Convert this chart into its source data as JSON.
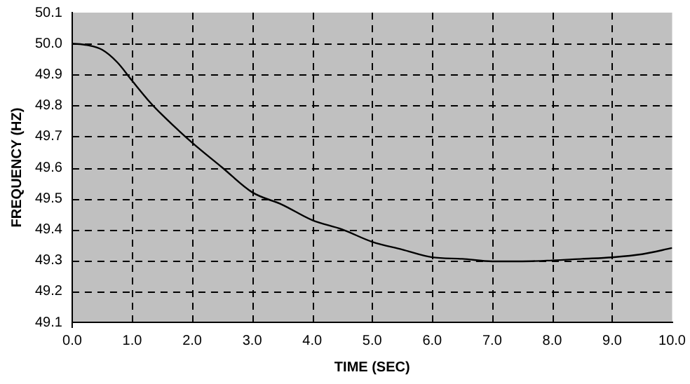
{
  "chart_data": {
    "type": "line",
    "xlabel": "TIME (SEC)",
    "ylabel": "FREQUENCY (HZ)",
    "x": [
      0,
      0.25,
      0.5,
      0.75,
      1.0,
      1.3,
      1.5,
      2.0,
      2.5,
      3.0,
      3.5,
      4.0,
      4.5,
      5.0,
      5.5,
      6.0,
      6.5,
      7.0,
      7.5,
      8.0,
      8.5,
      9.0,
      9.5,
      10.0
    ],
    "series": [
      {
        "color": "#000000",
        "values": [
          50.0,
          49.995,
          49.98,
          49.94,
          49.88,
          49.81,
          49.77,
          49.68,
          49.6,
          49.52,
          49.48,
          49.43,
          49.4,
          49.36,
          49.335,
          49.31,
          49.305,
          49.297,
          49.297,
          49.3,
          49.305,
          49.31,
          49.32,
          49.34
        ]
      }
    ],
    "xlim": [
      0,
      10
    ],
    "xticks": [
      {
        "value": 0,
        "label": "0.0"
      },
      {
        "value": 1,
        "label": "1.0"
      },
      {
        "value": 2,
        "label": "2.0"
      },
      {
        "value": 3,
        "label": "3.0"
      },
      {
        "value": 4,
        "label": "4.0"
      },
      {
        "value": 5,
        "label": "5.0"
      },
      {
        "value": 6,
        "label": "6.0"
      },
      {
        "value": 7,
        "label": "7.0"
      },
      {
        "value": 8,
        "label": "8.0"
      },
      {
        "value": 9,
        "label": "9.0"
      },
      {
        "value": 10,
        "label": "10.0"
      }
    ],
    "ylim": [
      49.1,
      50.1
    ],
    "yticks": [
      49.1,
      49.2,
      49.3,
      49.4,
      49.5,
      49.6,
      49.7,
      49.8,
      49.9,
      {
        "value": 50,
        "label": "50.0"
      },
      50.1
    ],
    "grid": true,
    "legend": false,
    "marker": "none",
    "line_style": "solid"
  }
}
